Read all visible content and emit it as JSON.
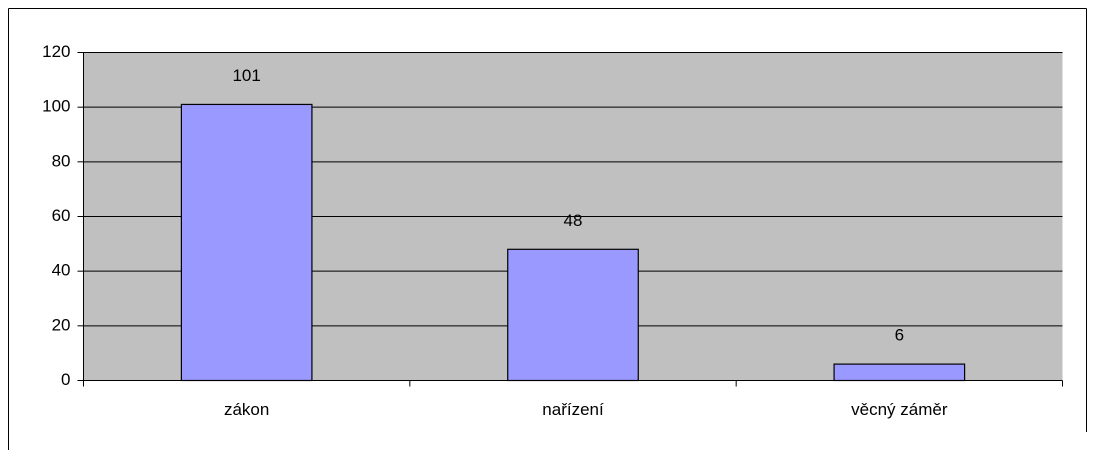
{
  "chart_data": {
    "type": "bar",
    "categories": [
      "zákon",
      "nařízení",
      "věcný záměr"
    ],
    "values": [
      101,
      48,
      6
    ],
    "color": "#9999ff",
    "plot_background": "#c0c0c0",
    "ylim": [
      0,
      120
    ],
    "yticks": [
      0,
      20,
      40,
      60,
      80,
      100,
      120
    ],
    "grid": true
  }
}
